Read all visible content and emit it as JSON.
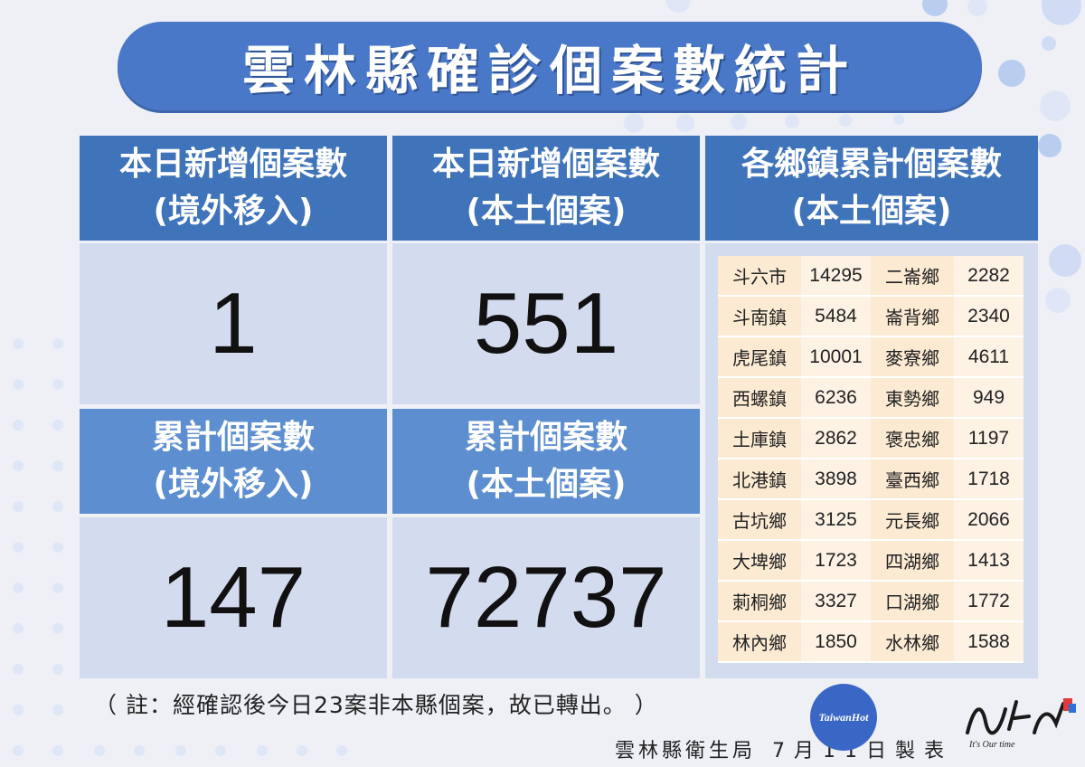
{
  "title": "雲林縣確診個案數統計",
  "panels": {
    "daily_imported": {
      "line1": "本日新增個案數",
      "line2": "(境外移入)",
      "value": "1"
    },
    "daily_local": {
      "line1": "本日新增個案數",
      "line2": "(本土個案)",
      "value": "551"
    },
    "cumulative_imported": {
      "line1": "累計個案數",
      "line2": "(境外移入)",
      "value": "147"
    },
    "cumulative_local": {
      "line1": "累計個案數",
      "line2": "(本土個案)",
      "value": "72737"
    },
    "towns": {
      "line1": "各鄉鎮累計個案數",
      "line2": "(本土個案)"
    }
  },
  "towns": [
    {
      "name": "斗六市",
      "count": "14295"
    },
    {
      "name": "二崙鄉",
      "count": "2282"
    },
    {
      "name": "斗南鎮",
      "count": "5484"
    },
    {
      "name": "崙背鄉",
      "count": "2340"
    },
    {
      "name": "虎尾鎮",
      "count": "10001"
    },
    {
      "name": "麥寮鄉",
      "count": "4611"
    },
    {
      "name": "西螺鎮",
      "count": "6236"
    },
    {
      "name": "東勢鄉",
      "count": "949"
    },
    {
      "name": "土庫鎮",
      "count": "2862"
    },
    {
      "name": "褒忠鄉",
      "count": "1197"
    },
    {
      "name": "北港鎮",
      "count": "3898"
    },
    {
      "name": "臺西鄉",
      "count": "1718"
    },
    {
      "name": "古坑鄉",
      "count": "3125"
    },
    {
      "name": "元長鄉",
      "count": "2066"
    },
    {
      "name": "大埤鄉",
      "count": "1723"
    },
    {
      "name": "四湖鄉",
      "count": "1413"
    },
    {
      "name": "莿桐鄉",
      "count": "3327"
    },
    {
      "name": "口湖鄉",
      "count": "1772"
    },
    {
      "name": "林內鄉",
      "count": "1850"
    },
    {
      "name": "水林鄉",
      "count": "1588"
    }
  ],
  "note": "（ 註：經確認後今日23案非本縣個案，故已轉出。 ）",
  "footer": {
    "agency": "雲林縣衛生局",
    "date": "7月11日製表"
  },
  "logos": {
    "taiwanhot": "TaiwanHot",
    "slogan": "It's Our time"
  },
  "colors": {
    "title_bg": "#4a78c8",
    "header_bg": "#3f73ba",
    "header_light_bg": "#5d8fd0",
    "value_bg": "#d3dbee",
    "town_name_bg": "#fcead3",
    "town_count_bg": "#fdf2e4"
  }
}
